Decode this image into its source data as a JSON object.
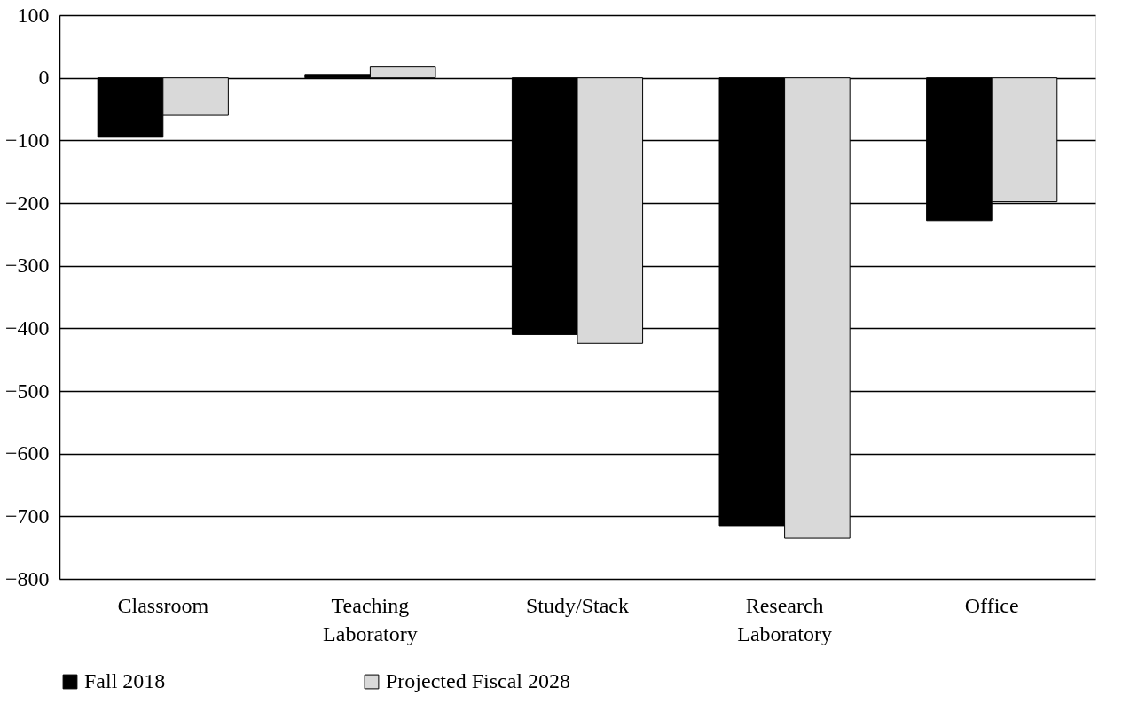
{
  "chart_data": {
    "type": "bar",
    "categories": [
      "Classroom",
      "Teaching Laboratory",
      "Study/Stack",
      "Research Laboratory",
      "Office"
    ],
    "series": [
      {
        "name": "Fall 2018",
        "color": "#000000",
        "values": [
          -95,
          4,
          -410,
          -715,
          -228
        ]
      },
      {
        "name": "Projected Fiscal 2028",
        "color": "#d9d9d9",
        "values": [
          -60,
          17,
          -424,
          -735,
          -198
        ]
      }
    ],
    "ylim": [
      -800,
      100
    ],
    "yticks": [
      -800,
      -700,
      -600,
      -500,
      -400,
      -300,
      -200,
      -100,
      0,
      100
    ],
    "grid": "y",
    "legend": "bottom"
  }
}
